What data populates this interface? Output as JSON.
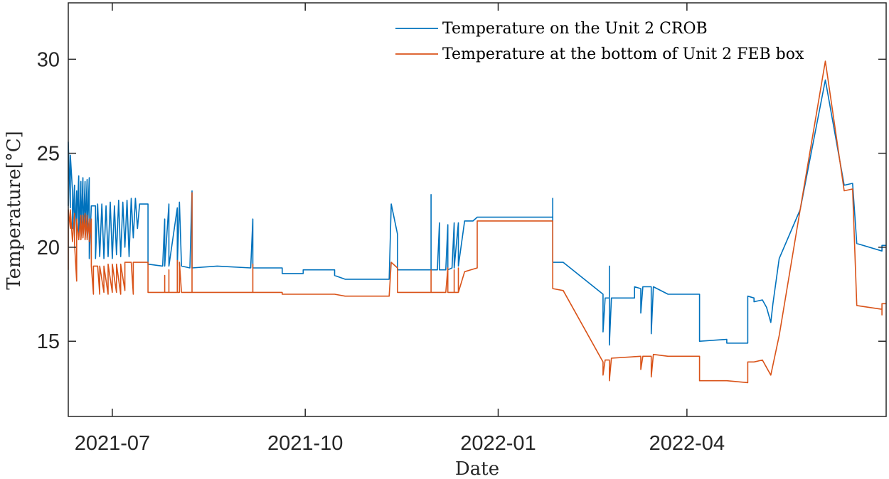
{
  "chart_data": {
    "type": "line",
    "xlabel": "Date",
    "ylabel": "Temperature[°C]",
    "xlim": [
      "2021-06-10",
      "2022-07-05"
    ],
    "ylim": [
      11,
      33
    ],
    "x_ticks": [
      {
        "date": "2021-07-01",
        "label": "2021-07"
      },
      {
        "date": "2021-10-01",
        "label": "2021-10"
      },
      {
        "date": "2022-01-01",
        "label": "2022-01"
      },
      {
        "date": "2022-04-01",
        "label": "2022-04"
      }
    ],
    "y_ticks": [
      15,
      20,
      25,
      30
    ],
    "grid": false,
    "legend_position": "top-right",
    "series": [
      {
        "name": "Temperature on the Unit 2 CROB",
        "color": "#0072BD",
        "points": [
          [
            "2021-06-10",
            22.2
          ],
          [
            "2021-06-10",
            25.6
          ],
          [
            "2021-06-11",
            22.1
          ],
          [
            "2021-06-11",
            24.9
          ],
          [
            "2021-06-12",
            23.0
          ],
          [
            "2021-06-12",
            21.0
          ],
          [
            "2021-06-13",
            23.3
          ],
          [
            "2021-06-13",
            20.6
          ],
          [
            "2021-06-14",
            23.0
          ],
          [
            "2021-06-14",
            21.0
          ],
          [
            "2021-06-15",
            23.8
          ],
          [
            "2021-06-15",
            20.5
          ],
          [
            "2021-06-16",
            23.5
          ],
          [
            "2021-06-16",
            20.8
          ],
          [
            "2021-06-17",
            23.7
          ],
          [
            "2021-06-17",
            20.6
          ],
          [
            "2021-06-18",
            23.5
          ],
          [
            "2021-06-18",
            20.7
          ],
          [
            "2021-06-19",
            23.6
          ],
          [
            "2021-06-19",
            20.5
          ],
          [
            "2021-06-20",
            23.7
          ],
          [
            "2021-06-20",
            19.4
          ],
          [
            "2021-06-21",
            22.2
          ],
          [
            "2021-06-23",
            22.2
          ],
          [
            "2021-06-23",
            19.4
          ],
          [
            "2021-06-24",
            22.3
          ],
          [
            "2021-06-25",
            19.5
          ],
          [
            "2021-06-26",
            22.3
          ],
          [
            "2021-06-27",
            19.4
          ],
          [
            "2021-06-28",
            22.2
          ],
          [
            "2021-06-29",
            19.5
          ],
          [
            "2021-06-30",
            22.4
          ],
          [
            "2021-07-01",
            19.4
          ],
          [
            "2021-07-02",
            22.2
          ],
          [
            "2021-07-03",
            19.6
          ],
          [
            "2021-07-04",
            22.5
          ],
          [
            "2021-07-05",
            19.5
          ],
          [
            "2021-07-06",
            22.4
          ],
          [
            "2021-07-07",
            20.0
          ],
          [
            "2021-07-08",
            22.5
          ],
          [
            "2021-07-09",
            19.5
          ],
          [
            "2021-07-10",
            22.6
          ],
          [
            "2021-07-11",
            20.5
          ],
          [
            "2021-07-12",
            22.6
          ],
          [
            "2021-07-13",
            21.0
          ],
          [
            "2021-07-14",
            22.3
          ],
          [
            "2021-07-18",
            22.3
          ],
          [
            "2021-07-18",
            19.1
          ],
          [
            "2021-07-25",
            19.0
          ],
          [
            "2021-07-26",
            21.5
          ],
          [
            "2021-07-26",
            19.0
          ],
          [
            "2021-07-28",
            22.3
          ],
          [
            "2021-07-28",
            19.0
          ],
          [
            "2021-08-01",
            22.1
          ],
          [
            "2021-08-01",
            19.0
          ],
          [
            "2021-08-02",
            22.4
          ],
          [
            "2021-08-03",
            19.0
          ],
          [
            "2021-08-07",
            18.9
          ],
          [
            "2021-08-08",
            23.0
          ],
          [
            "2021-08-08",
            18.9
          ],
          [
            "2021-08-20",
            19.0
          ],
          [
            "2021-09-05",
            18.9
          ],
          [
            "2021-09-06",
            21.5
          ],
          [
            "2021-09-06",
            18.9
          ],
          [
            "2021-09-20",
            18.9
          ],
          [
            "2021-09-20",
            18.6
          ],
          [
            "2021-09-30",
            18.6
          ],
          [
            "2021-09-30",
            18.8
          ],
          [
            "2021-10-15",
            18.8
          ],
          [
            "2021-10-15",
            18.5
          ],
          [
            "2021-10-20",
            18.3
          ],
          [
            "2021-11-10",
            18.3
          ],
          [
            "2021-11-11",
            22.3
          ],
          [
            "2021-11-14",
            20.7
          ],
          [
            "2021-11-14",
            18.8
          ],
          [
            "2021-11-30",
            18.8
          ],
          [
            "2021-11-30",
            22.8
          ],
          [
            "2021-11-30",
            18.8
          ],
          [
            "2021-12-03",
            18.8
          ],
          [
            "2021-12-04",
            21.3
          ],
          [
            "2021-12-04",
            18.8
          ],
          [
            "2021-12-07",
            18.8
          ],
          [
            "2021-12-08",
            21.2
          ],
          [
            "2021-12-08",
            18.8
          ],
          [
            "2021-12-10",
            18.9
          ],
          [
            "2021-12-11",
            21.3
          ],
          [
            "2021-12-11",
            18.9
          ],
          [
            "2021-12-13",
            21.3
          ],
          [
            "2021-12-13",
            19.0
          ],
          [
            "2021-12-16",
            21.4
          ],
          [
            "2021-12-20",
            21.4
          ],
          [
            "2021-12-22",
            21.6
          ],
          [
            "2022-01-01",
            21.6
          ],
          [
            "2022-01-27",
            21.6
          ],
          [
            "2022-01-27",
            22.6
          ],
          [
            "2022-01-27",
            19.2
          ],
          [
            "2022-02-01",
            19.2
          ],
          [
            "2022-02-20",
            17.5
          ],
          [
            "2022-02-20",
            15.5
          ],
          [
            "2022-02-21",
            17.3
          ],
          [
            "2022-02-23",
            17.3
          ],
          [
            "2022-02-23",
            19.0
          ],
          [
            "2022-02-23",
            14.8
          ],
          [
            "2022-02-24",
            17.3
          ],
          [
            "2022-03-07",
            17.3
          ],
          [
            "2022-03-07",
            17.9
          ],
          [
            "2022-03-10",
            17.8
          ],
          [
            "2022-03-10",
            16.5
          ],
          [
            "2022-03-11",
            17.9
          ],
          [
            "2022-03-15",
            17.9
          ],
          [
            "2022-03-15",
            15.4
          ],
          [
            "2022-03-16",
            17.9
          ],
          [
            "2022-03-23",
            17.5
          ],
          [
            "2022-04-07",
            17.5
          ],
          [
            "2022-04-07",
            15.0
          ],
          [
            "2022-04-20",
            15.1
          ],
          [
            "2022-04-20",
            14.9
          ],
          [
            "2022-04-30",
            14.9
          ],
          [
            "2022-04-30",
            17.4
          ],
          [
            "2022-05-03",
            17.3
          ],
          [
            "2022-05-03",
            17.1
          ],
          [
            "2022-05-07",
            17.2
          ],
          [
            "2022-05-09",
            16.8
          ],
          [
            "2022-05-11",
            16.0
          ],
          [
            "2022-05-12",
            17.0
          ],
          [
            "2022-05-15",
            19.4
          ],
          [
            "2022-05-25",
            22.0
          ],
          [
            "2022-06-06",
            28.9
          ],
          [
            "2022-06-15",
            23.3
          ],
          [
            "2022-06-19",
            23.4
          ],
          [
            "2022-06-21",
            20.2
          ],
          [
            "2022-07-03",
            19.8
          ],
          [
            "2022-07-03",
            20.1
          ],
          [
            "2022-07-05",
            20.1
          ]
        ]
      },
      {
        "name": "Temperature at the bottom of Unit 2 FEB box",
        "color": "#D95319",
        "points": [
          [
            "2021-06-10",
            18.8
          ],
          [
            "2021-06-10",
            22.0
          ],
          [
            "2021-06-11",
            21.0
          ],
          [
            "2021-06-11",
            22.0
          ],
          [
            "2021-06-12",
            20.3
          ],
          [
            "2021-06-13",
            21.8
          ],
          [
            "2021-06-13",
            20.2
          ],
          [
            "2021-06-14",
            18.2
          ],
          [
            "2021-06-14",
            21.5
          ],
          [
            "2021-06-15",
            20.4
          ],
          [
            "2021-06-16",
            21.7
          ],
          [
            "2021-06-16",
            20.4
          ],
          [
            "2021-06-17",
            21.7
          ],
          [
            "2021-06-17",
            20.5
          ],
          [
            "2021-06-18",
            21.8
          ],
          [
            "2021-06-18",
            20.4
          ],
          [
            "2021-06-19",
            21.7
          ],
          [
            "2021-06-19",
            20.4
          ],
          [
            "2021-06-20",
            21.5
          ],
          [
            "2021-06-20",
            20.3
          ],
          [
            "2021-06-21",
            21.5
          ],
          [
            "2021-06-21",
            19.0
          ],
          [
            "2021-06-22",
            17.5
          ],
          [
            "2021-06-22",
            19.0
          ],
          [
            "2021-06-24",
            19.0
          ],
          [
            "2021-06-25",
            17.5
          ],
          [
            "2021-06-25",
            19.0
          ],
          [
            "2021-06-27",
            17.6
          ],
          [
            "2021-06-27",
            19.0
          ],
          [
            "2021-06-29",
            17.5
          ],
          [
            "2021-06-29",
            19.1
          ],
          [
            "2021-07-01",
            17.6
          ],
          [
            "2021-07-01",
            19.1
          ],
          [
            "2021-07-03",
            17.6
          ],
          [
            "2021-07-03",
            19.1
          ],
          [
            "2021-07-05",
            17.5
          ],
          [
            "2021-07-05",
            19.1
          ],
          [
            "2021-07-07",
            17.7
          ],
          [
            "2021-07-07",
            19.2
          ],
          [
            "2021-07-10",
            19.2
          ],
          [
            "2021-07-11",
            17.5
          ],
          [
            "2021-07-11",
            19.2
          ],
          [
            "2021-07-18",
            19.2
          ],
          [
            "2021-07-18",
            17.6
          ],
          [
            "2021-07-26",
            17.6
          ],
          [
            "2021-07-26",
            18.5
          ],
          [
            "2021-07-26",
            17.6
          ],
          [
            "2021-07-28",
            17.6
          ],
          [
            "2021-07-28",
            18.8
          ],
          [
            "2021-07-28",
            17.6
          ],
          [
            "2021-08-01",
            17.6
          ],
          [
            "2021-08-01",
            19.3
          ],
          [
            "2021-08-01",
            17.6
          ],
          [
            "2021-08-02",
            17.6
          ],
          [
            "2021-08-02",
            19.2
          ],
          [
            "2021-08-03",
            17.6
          ],
          [
            "2021-08-08",
            17.6
          ],
          [
            "2021-08-08",
            22.9
          ],
          [
            "2021-08-08",
            17.6
          ],
          [
            "2021-09-06",
            17.6
          ],
          [
            "2021-09-06",
            19.1
          ],
          [
            "2021-09-06",
            17.6
          ],
          [
            "2021-09-20",
            17.6
          ],
          [
            "2021-09-20",
            17.5
          ],
          [
            "2021-10-15",
            17.5
          ],
          [
            "2021-10-20",
            17.4
          ],
          [
            "2021-11-10",
            17.4
          ],
          [
            "2021-11-11",
            19.2
          ],
          [
            "2021-11-14",
            18.9
          ],
          [
            "2021-11-14",
            17.6
          ],
          [
            "2021-11-30",
            17.6
          ],
          [
            "2021-11-30",
            18.8
          ],
          [
            "2021-11-30",
            17.6
          ],
          [
            "2021-12-07",
            17.6
          ],
          [
            "2021-12-08",
            18.9
          ],
          [
            "2021-12-08",
            17.6
          ],
          [
            "2021-12-11",
            17.6
          ],
          [
            "2021-12-11",
            18.8
          ],
          [
            "2021-12-11",
            17.6
          ],
          [
            "2021-12-13",
            17.6
          ],
          [
            "2021-12-13",
            18.9
          ],
          [
            "2021-12-13",
            17.6
          ],
          [
            "2021-12-16",
            18.7
          ],
          [
            "2021-12-22",
            18.9
          ],
          [
            "2021-12-22",
            21.4
          ],
          [
            "2022-01-01",
            21.4
          ],
          [
            "2022-01-27",
            21.4
          ],
          [
            "2022-01-27",
            17.8
          ],
          [
            "2022-02-01",
            17.7
          ],
          [
            "2022-02-20",
            13.9
          ],
          [
            "2022-02-20",
            13.2
          ],
          [
            "2022-02-21",
            14.0
          ],
          [
            "2022-02-23",
            14.0
          ],
          [
            "2022-02-23",
            12.9
          ],
          [
            "2022-02-24",
            14.1
          ],
          [
            "2022-03-10",
            14.2
          ],
          [
            "2022-03-10",
            13.5
          ],
          [
            "2022-03-11",
            14.2
          ],
          [
            "2022-03-15",
            14.2
          ],
          [
            "2022-03-15",
            13.1
          ],
          [
            "2022-03-16",
            14.3
          ],
          [
            "2022-03-23",
            14.2
          ],
          [
            "2022-04-07",
            14.2
          ],
          [
            "2022-04-07",
            12.9
          ],
          [
            "2022-04-20",
            12.9
          ],
          [
            "2022-04-30",
            12.8
          ],
          [
            "2022-04-30",
            13.9
          ],
          [
            "2022-05-03",
            13.9
          ],
          [
            "2022-05-07",
            14.0
          ],
          [
            "2022-05-11",
            13.2
          ],
          [
            "2022-05-15",
            15.3
          ],
          [
            "2022-05-25",
            22.0
          ],
          [
            "2022-06-06",
            29.9
          ],
          [
            "2022-06-15",
            23.0
          ],
          [
            "2022-06-19",
            23.1
          ],
          [
            "2022-06-21",
            16.9
          ],
          [
            "2022-07-03",
            16.7
          ],
          [
            "2022-07-03",
            16.4
          ],
          [
            "2022-07-03",
            17.0
          ],
          [
            "2022-07-05",
            17.0
          ]
        ]
      }
    ]
  }
}
